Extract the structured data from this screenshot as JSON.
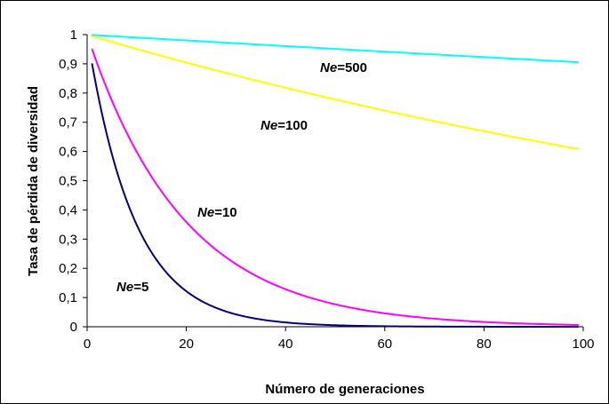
{
  "chart_data": {
    "type": "line",
    "title": "",
    "xlabel": "Número de generaciones",
    "ylabel": "Tasa de pérdida de diversidad",
    "xlim": [
      0,
      100
    ],
    "ylim": [
      0,
      1
    ],
    "x_ticks": [
      "0",
      "20",
      "40",
      "60",
      "80",
      "100"
    ],
    "y_ticks": [
      "0",
      "0,1",
      "0,2",
      "0,3",
      "0,4",
      "0,5",
      "0,6",
      "0,7",
      "0,8",
      "0,9",
      "1"
    ],
    "grid": false,
    "legend": "none (labels placed next to curves)",
    "series": [
      {
        "name_prefix": "Ne",
        "name_value": "=5",
        "Ne": 5,
        "color": "#000080",
        "x": [
          1,
          5,
          10,
          15,
          20,
          25,
          30,
          35,
          40,
          45,
          50,
          60,
          70,
          80,
          90,
          99
        ],
        "values": [
          0.9,
          0.59,
          0.349,
          0.206,
          0.122,
          0.072,
          0.042,
          0.025,
          0.015,
          0.009,
          0.005,
          0.002,
          0.001,
          0.0,
          0.0,
          0.0
        ]
      },
      {
        "name_prefix": "Ne",
        "name_value": "=10",
        "Ne": 10,
        "color": "#ff00ff",
        "x": [
          1,
          5,
          10,
          15,
          20,
          25,
          30,
          35,
          40,
          45,
          50,
          60,
          70,
          80,
          90,
          99
        ],
        "values": [
          0.95,
          0.774,
          0.599,
          0.463,
          0.358,
          0.277,
          0.215,
          0.166,
          0.129,
          0.099,
          0.077,
          0.046,
          0.028,
          0.017,
          0.01,
          0.006
        ]
      },
      {
        "name_prefix": "Ne",
        "name_value": "=100",
        "Ne": 100,
        "color": "#ffff00",
        "x": [
          1,
          10,
          20,
          30,
          40,
          50,
          60,
          70,
          80,
          90,
          99
        ],
        "values": [
          0.995,
          0.951,
          0.905,
          0.861,
          0.818,
          0.778,
          0.74,
          0.704,
          0.67,
          0.637,
          0.609
        ]
      },
      {
        "name_prefix": "Ne",
        "name_value": "=500",
        "Ne": 500,
        "color": "#00ffff",
        "x": [
          1,
          10,
          20,
          30,
          40,
          50,
          60,
          70,
          80,
          90,
          99
        ],
        "values": [
          0.999,
          0.99,
          0.98,
          0.97,
          0.961,
          0.951,
          0.942,
          0.932,
          0.923,
          0.914,
          0.906
        ]
      }
    ]
  }
}
